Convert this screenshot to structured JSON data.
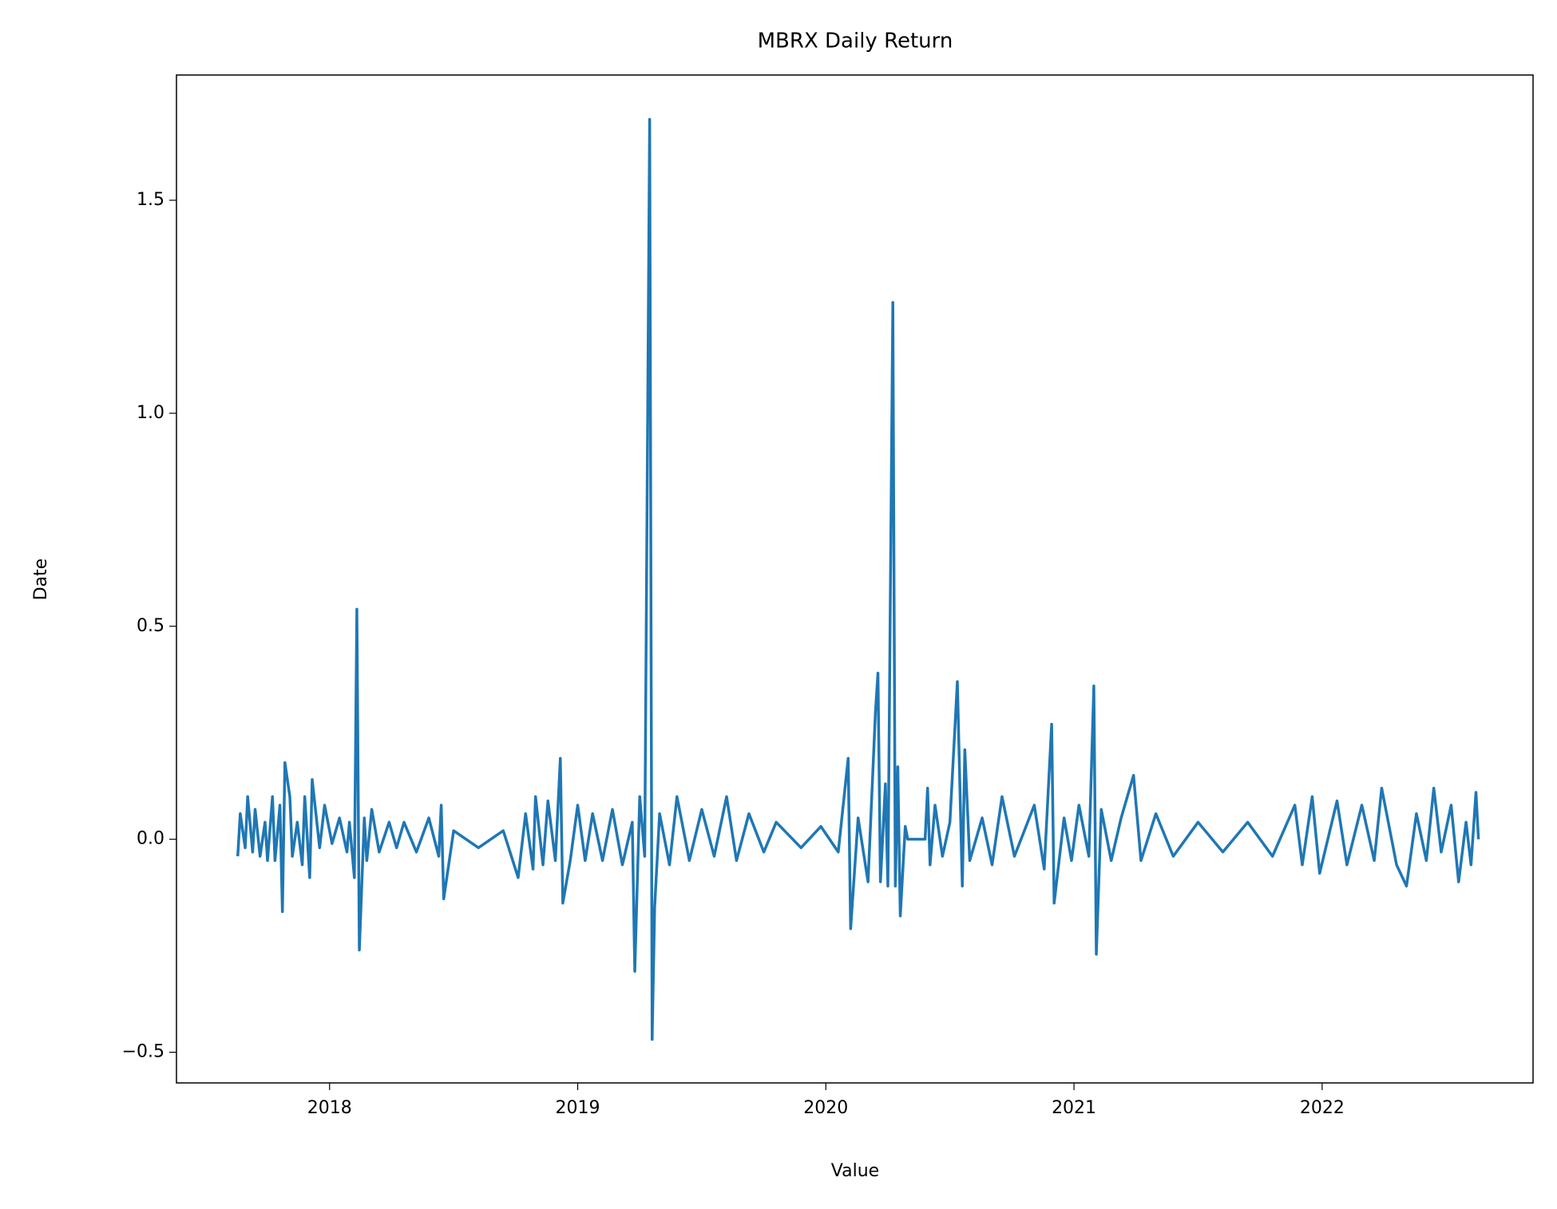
{
  "chart_data": {
    "type": "line",
    "title": "MBRX Daily Return",
    "x_label": "Value",
    "y_label": "Date",
    "color": "#1f77b4",
    "x": [
      2017.63,
      2017.64,
      2017.66,
      2017.67,
      2017.69,
      2017.7,
      2017.72,
      2017.74,
      2017.75,
      2017.77,
      2017.78,
      2017.8,
      2017.81,
      2017.82,
      2017.84,
      2017.85,
      2017.87,
      2017.89,
      2017.9,
      2017.92,
      2017.93,
      2017.96,
      2017.98,
      2018.01,
      2018.04,
      2018.07,
      2018.08,
      2018.1,
      2018.11,
      2018.12,
      2018.14,
      2018.15,
      2018.17,
      2018.2,
      2018.24,
      2018.27,
      2018.3,
      2018.35,
      2018.4,
      2018.44,
      2018.45,
      2018.46,
      2018.5,
      2018.6,
      2018.7,
      2018.76,
      2018.79,
      2018.82,
      2018.83,
      2018.86,
      2018.88,
      2018.91,
      2018.93,
      2018.94,
      2018.97,
      2019.0,
      2019.03,
      2019.06,
      2019.1,
      2019.14,
      2019.18,
      2019.22,
      2019.23,
      2019.25,
      2019.27,
      2019.29,
      2019.3,
      2019.31,
      2019.33,
      2019.37,
      2019.4,
      2019.45,
      2019.5,
      2019.55,
      2019.6,
      2019.64,
      2019.69,
      2019.75,
      2019.8,
      2019.9,
      2019.98,
      2020.05,
      2020.09,
      2020.1,
      2020.13,
      2020.17,
      2020.2,
      2020.21,
      2020.22,
      2020.24,
      2020.25,
      2020.27,
      2020.28,
      2020.29,
      2020.3,
      2020.32,
      2020.33,
      2020.4,
      2020.41,
      2020.42,
      2020.44,
      2020.47,
      2020.5,
      2020.53,
      2020.55,
      2020.56,
      2020.58,
      2020.63,
      2020.67,
      2020.71,
      2020.76,
      2020.84,
      2020.88,
      2020.91,
      2020.92,
      2020.96,
      2020.99,
      2021.02,
      2021.06,
      2021.08,
      2021.09,
      2021.11,
      2021.15,
      2021.19,
      2021.24,
      2021.27,
      2021.33,
      2021.4,
      2021.5,
      2021.6,
      2021.7,
      2021.8,
      2021.89,
      2021.92,
      2021.96,
      2021.99,
      2022.06,
      2022.1,
      2022.16,
      2022.21,
      2022.24,
      2022.3,
      2022.34,
      2022.38,
      2022.42,
      2022.45,
      2022.48,
      2022.52,
      2022.55,
      2022.58,
      2022.6,
      2022.62,
      2022.63
    ],
    "values": [
      -0.04,
      0.06,
      -0.02,
      0.1,
      -0.03,
      0.07,
      -0.04,
      0.04,
      -0.05,
      0.1,
      -0.05,
      0.08,
      -0.17,
      0.18,
      0.1,
      -0.04,
      0.04,
      -0.06,
      0.1,
      -0.09,
      0.14,
      -0.02,
      0.08,
      -0.01,
      0.05,
      -0.03,
      0.04,
      -0.09,
      0.54,
      -0.26,
      0.05,
      -0.05,
      0.07,
      -0.03,
      0.04,
      -0.02,
      0.04,
      -0.03,
      0.05,
      -0.04,
      0.08,
      -0.14,
      0.02,
      -0.02,
      0.02,
      -0.09,
      0.06,
      -0.07,
      0.1,
      -0.06,
      0.09,
      -0.05,
      0.19,
      -0.15,
      -0.05,
      0.08,
      -0.05,
      0.06,
      -0.05,
      0.07,
      -0.06,
      0.04,
      -0.31,
      0.1,
      -0.04,
      1.69,
      -0.47,
      -0.16,
      0.06,
      -0.06,
      0.1,
      -0.05,
      0.07,
      -0.04,
      0.1,
      -0.05,
      0.06,
      -0.03,
      0.04,
      -0.02,
      0.03,
      -0.03,
      0.19,
      -0.21,
      0.05,
      -0.1,
      0.3,
      0.39,
      -0.1,
      0.13,
      -0.11,
      1.26,
      -0.11,
      0.17,
      -0.18,
      0.03,
      0.0,
      0.0,
      0.12,
      -0.06,
      0.08,
      -0.04,
      0.04,
      0.37,
      -0.11,
      0.21,
      -0.05,
      0.05,
      -0.06,
      0.1,
      -0.04,
      0.08,
      -0.07,
      0.27,
      -0.15,
      0.05,
      -0.05,
      0.08,
      -0.04,
      0.36,
      -0.27,
      0.07,
      -0.05,
      0.05,
      0.15,
      -0.05,
      0.06,
      -0.04,
      0.04,
      -0.03,
      0.04,
      -0.04,
      0.08,
      -0.06,
      0.1,
      -0.08,
      0.09,
      -0.06,
      0.08,
      -0.05,
      0.12,
      -0.06,
      -0.11,
      0.06,
      -0.05,
      0.12,
      -0.03,
      0.08,
      -0.1,
      0.04,
      -0.06,
      0.11,
      0.0
    ],
    "xlim": [
      2017.383,
      2022.85
    ],
    "ylim": [
      -0.572,
      1.794
    ],
    "xticks": [
      2018,
      2019,
      2020,
      2021,
      2022
    ],
    "yticks": [
      {
        "value": -0.5,
        "label": "−0.5"
      },
      {
        "value": 0,
        "label": "0.0"
      },
      0.5,
      {
        "value": 1,
        "label": "1.0"
      },
      1.5
    ]
  }
}
